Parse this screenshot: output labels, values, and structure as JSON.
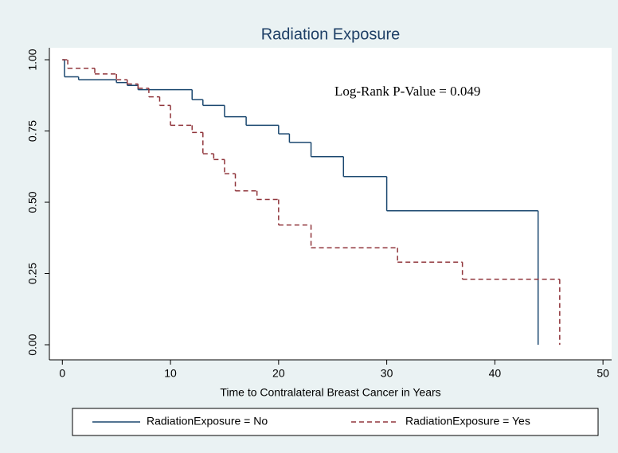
{
  "chart_data": {
    "type": "step",
    "title": "Radiation Exposure",
    "annotation": "Log-Rank P-Value = 0.049",
    "x_label": "Time to Contralateral Breast Cancer in Years",
    "xlim": [
      -1.2,
      50.8
    ],
    "ylim": [
      -0.053,
      1.042
    ],
    "xticks": [
      0,
      10,
      20,
      30,
      40,
      50
    ],
    "yticks": [
      {
        "value": 0,
        "label": "0.00"
      },
      {
        "value": 0.25,
        "label": "0.25"
      },
      {
        "value": 0.5,
        "label": "0.50"
      },
      {
        "value": 0.75,
        "label": "0.75"
      },
      {
        "value": 1,
        "label": "1.00"
      }
    ],
    "grid": false,
    "legend": "bottom",
    "series": [
      {
        "name": "RadiationExposure = No",
        "color": "#1a476f",
        "line_style": "solid",
        "x": [
          0,
          0.2,
          1.5,
          5,
          6,
          7,
          12,
          13,
          15,
          17,
          20,
          21,
          23,
          26,
          30,
          44
        ],
        "values": [
          1,
          0.94,
          0.93,
          0.92,
          0.91,
          0.895,
          0.86,
          0.84,
          0.8,
          0.77,
          0.74,
          0.71,
          0.66,
          0.59,
          0.47,
          0
        ]
      },
      {
        "name": "RadiationExposure = Yes",
        "color": "#90353b",
        "line_style": "dashed",
        "x": [
          0,
          0.5,
          3,
          5,
          6,
          7,
          8,
          9,
          10,
          12,
          13,
          14,
          15,
          16,
          18,
          20,
          23,
          31,
          37,
          46
        ],
        "values": [
          1,
          0.97,
          0.95,
          0.93,
          0.915,
          0.9,
          0.87,
          0.84,
          0.77,
          0.745,
          0.67,
          0.65,
          0.6,
          0.54,
          0.51,
          0.42,
          0.34,
          0.29,
          0.23,
          0
        ]
      }
    ]
  }
}
